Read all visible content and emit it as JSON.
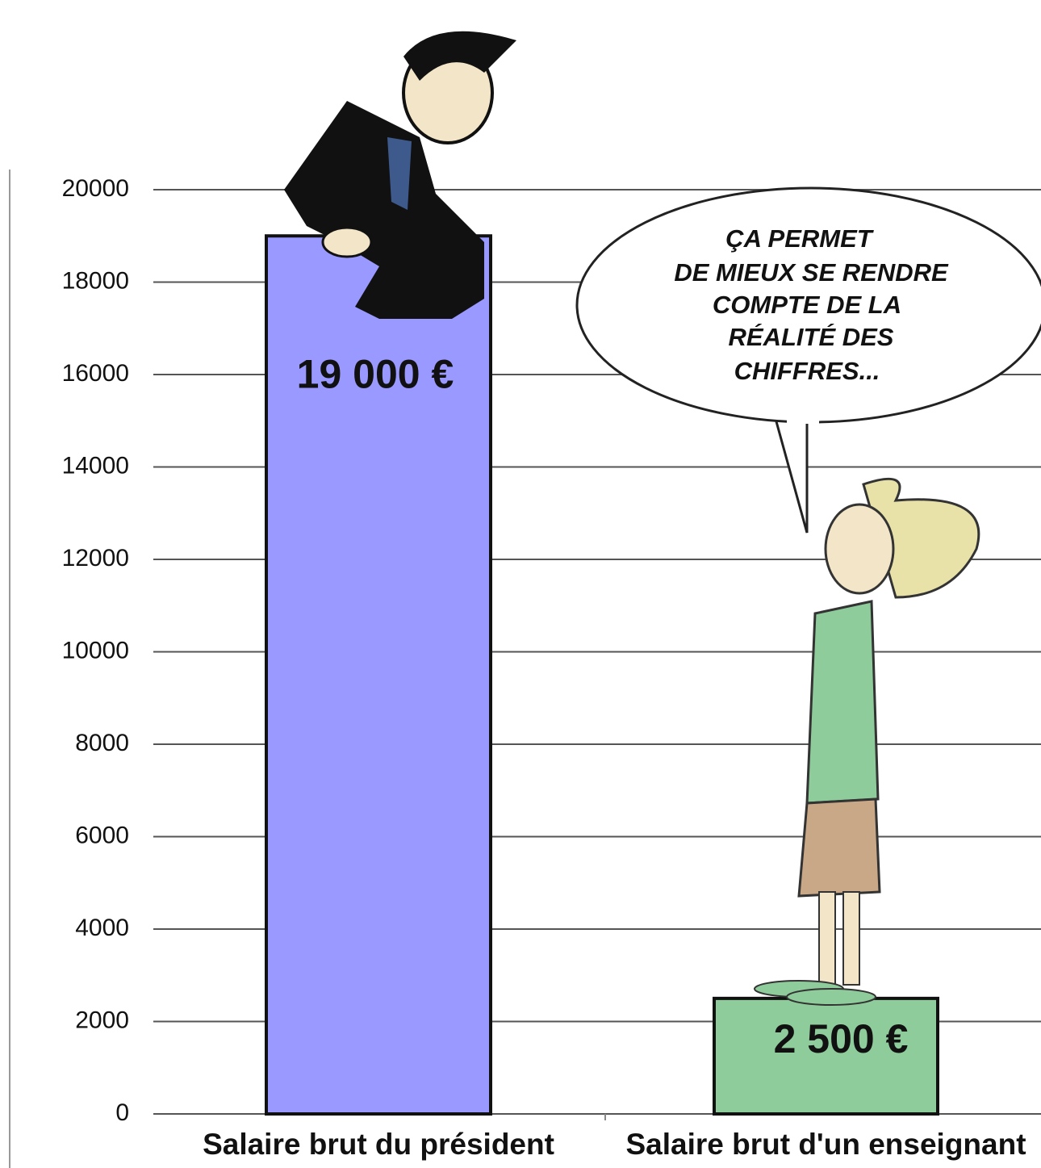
{
  "chart_data": {
    "type": "bar",
    "categories": [
      "Salaire brut du président",
      "Salaire brut d'un enseignant"
    ],
    "values": [
      19000,
      2500
    ],
    "value_labels": [
      "19 000 €",
      "2 500 €"
    ],
    "colors": [
      "#9999ff",
      "#8fcc9b"
    ],
    "ylim": [
      0,
      20000
    ],
    "yticks": [
      0,
      2000,
      4000,
      6000,
      8000,
      10000,
      12000,
      14000,
      16000,
      18000,
      20000
    ],
    "grid": true,
    "annotation": [
      "ÇA PERMET",
      "DE MIEUX SE RENDRE",
      "COMPTE DE LA",
      "RÉALITÉ DES",
      "CHIFFRES..."
    ]
  }
}
